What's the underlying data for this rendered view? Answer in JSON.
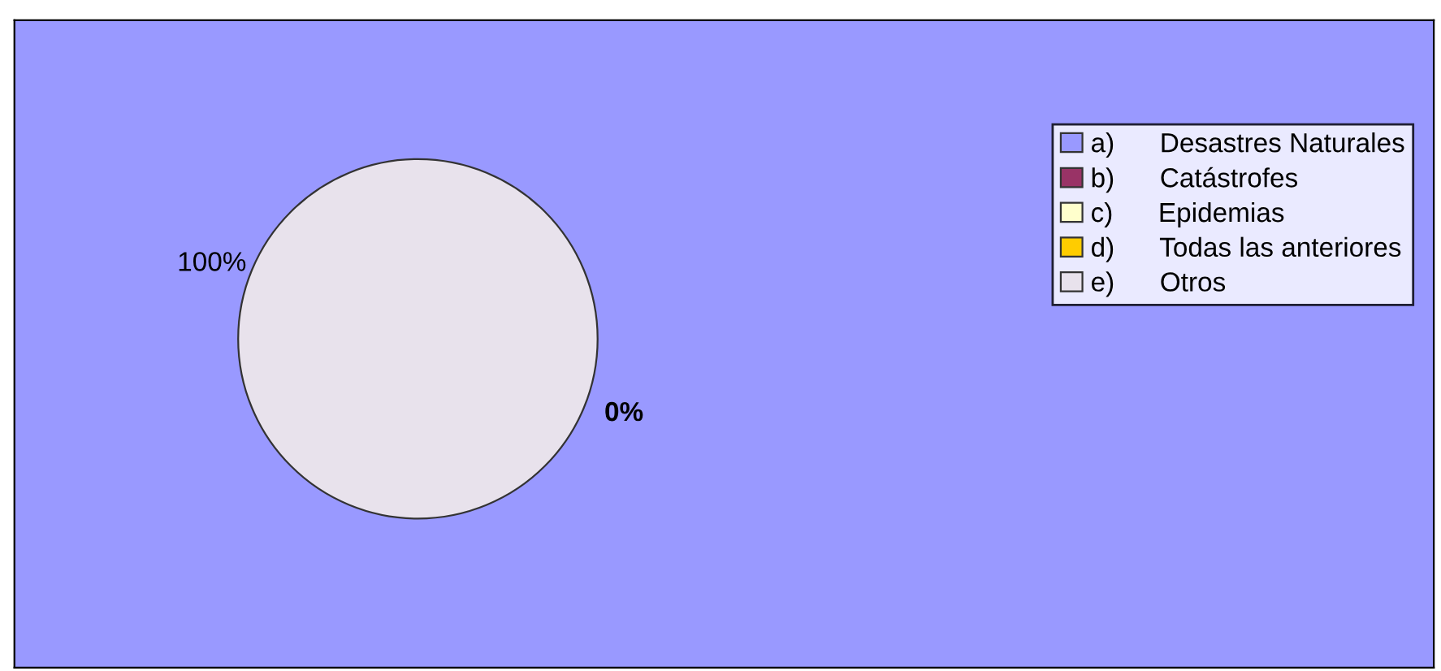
{
  "chart_data": {
    "type": "pie",
    "categories": [
      "a)      Desastres Naturales",
      "b)      Catástrofes",
      "c)      Epidemias",
      "d)      Todas las anteriores",
      "e)      Otros"
    ],
    "values": [
      0,
      0,
      0,
      0,
      100
    ],
    "colors": [
      "#9999ff",
      "#993366",
      "#ffffcc",
      "#ffcc00",
      "#e8e2ec"
    ],
    "value_labels": [
      null,
      null,
      null,
      "0%",
      "100%"
    ],
    "legend": "top right"
  }
}
